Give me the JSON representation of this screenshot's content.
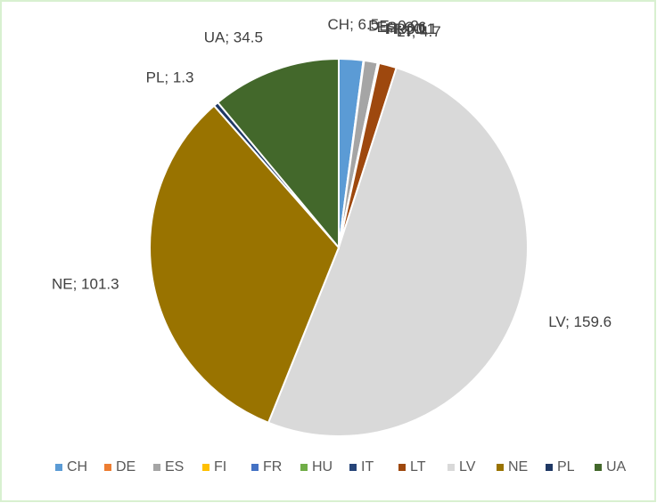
{
  "chart_data": {
    "type": "pie",
    "categories": [
      "CH",
      "DE",
      "ES",
      "FI",
      "FR",
      "HU",
      "IT",
      "LT",
      "LV",
      "NE",
      "PL",
      "UA"
    ],
    "values": [
      6.5,
      0.2,
      3.6,
      0.1,
      0.1,
      0.1,
      0.1,
      4.7,
      159.6,
      101.3,
      1.3,
      34.5
    ],
    "value_labels": [
      "CH; 6.5",
      "DE; 0.2",
      "ES; 3.6",
      "FI; 0.1",
      "FR; 0.1",
      "HU; 0.1",
      "IT; 0.1",
      "LT; 4.7",
      "LV; 159.6",
      "NE; 101.3",
      "PL; 1.3",
      "UA; 34.5"
    ],
    "colors": [
      "#5b9bd5",
      "#ed7d31",
      "#a5a5a5",
      "#ffc000",
      "#4472c4",
      "#70ad47",
      "#264478",
      "#9e480e",
      "#d9d9d9",
      "#997300",
      "#1f3864",
      "#43682b"
    ],
    "legend": "bottom"
  }
}
